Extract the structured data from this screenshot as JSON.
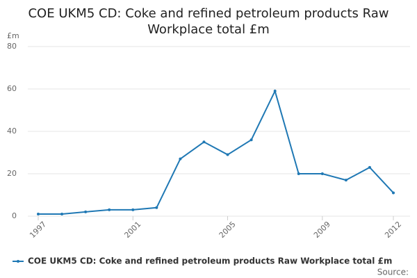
{
  "chart_data": {
    "type": "line",
    "title": "COE UKM5 CD: Coke and refined petroleum products Raw Workplace total £m",
    "y_unit": "£m",
    "x": [
      1997,
      1998,
      1999,
      2000,
      2001,
      2002,
      2003,
      2004,
      2005,
      2006,
      2007,
      2008,
      2009,
      2010,
      2011,
      2012
    ],
    "series": [
      {
        "name": "COE UKM5 CD: Coke and refined petroleum products Raw Workplace total £m",
        "color": "#1f78b4",
        "values": [
          1,
          1,
          2,
          3,
          3,
          4,
          27,
          35,
          29,
          36,
          59,
          20,
          20,
          17,
          23,
          11
        ]
      }
    ],
    "xlim": [
      1997,
      2012
    ],
    "xticks": [
      1997,
      2001,
      2005,
      2009,
      2012
    ],
    "ylim": [
      0,
      80
    ],
    "yticks": [
      0,
      20,
      40,
      60,
      80
    ],
    "grid": true,
    "source": "Source:"
  }
}
